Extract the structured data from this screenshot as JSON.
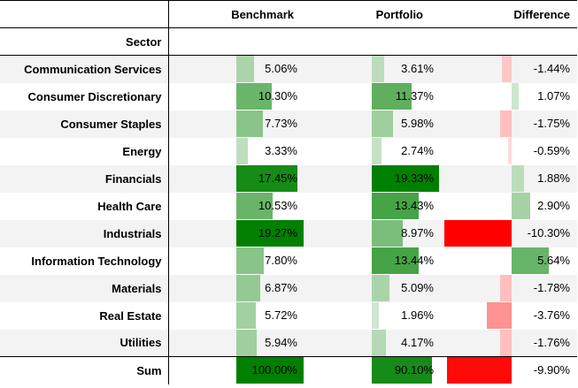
{
  "headers": {
    "benchmark": "Benchmark",
    "portfolio": "Portfolio",
    "difference": "Difference",
    "sector": "Sector"
  },
  "rows": [
    {
      "sector": "Communication Services",
      "benchmark": "5.06%",
      "portfolio": "3.61%",
      "difference": "-1.44%",
      "bv": 5.06,
      "pv": 3.61,
      "dv": -1.44
    },
    {
      "sector": "Consumer Discretionary",
      "benchmark": "10.30%",
      "portfolio": "11.37%",
      "difference": "1.07%",
      "bv": 10.3,
      "pv": 11.37,
      "dv": 1.07
    },
    {
      "sector": "Consumer Staples",
      "benchmark": "7.73%",
      "portfolio": "5.98%",
      "difference": "-1.75%",
      "bv": 7.73,
      "pv": 5.98,
      "dv": -1.75
    },
    {
      "sector": "Energy",
      "benchmark": "3.33%",
      "portfolio": "2.74%",
      "difference": "-0.59%",
      "bv": 3.33,
      "pv": 2.74,
      "dv": -0.59
    },
    {
      "sector": "Financials",
      "benchmark": "17.45%",
      "portfolio": "19.33%",
      "difference": "1.88%",
      "bv": 17.45,
      "pv": 19.33,
      "dv": 1.88
    },
    {
      "sector": "Health Care",
      "benchmark": "10.53%",
      "portfolio": "13.43%",
      "difference": "2.90%",
      "bv": 10.53,
      "pv": 13.43,
      "dv": 2.9
    },
    {
      "sector": "Industrials",
      "benchmark": "19.27%",
      "portfolio": "8.97%",
      "difference": "-10.30%",
      "bv": 19.27,
      "pv": 8.97,
      "dv": -10.3
    },
    {
      "sector": "Information Technology",
      "benchmark": "7.80%",
      "portfolio": "13.44%",
      "difference": "5.64%",
      "bv": 7.8,
      "pv": 13.44,
      "dv": 5.64
    },
    {
      "sector": "Materials",
      "benchmark": "6.87%",
      "portfolio": "5.09%",
      "difference": "-1.78%",
      "bv": 6.87,
      "pv": 5.09,
      "dv": -1.78
    },
    {
      "sector": "Real Estate",
      "benchmark": "5.72%",
      "portfolio": "1.96%",
      "difference": "-3.76%",
      "bv": 5.72,
      "pv": 1.96,
      "dv": -3.76
    },
    {
      "sector": "Utilities",
      "benchmark": "5.94%",
      "portfolio": "4.17%",
      "difference": "-1.76%",
      "bv": 5.94,
      "pv": 4.17,
      "dv": -1.76
    }
  ],
  "sum": {
    "sector": "Sum",
    "benchmark": "100.00%",
    "portfolio": "90.10%",
    "difference": "-9.90%",
    "bv": 100,
    "pv": 90.1,
    "dv": -9.9
  },
  "colors": {
    "green_dark": "#008000",
    "green_light": "#e6f2e6",
    "red_strong": "#ff0000",
    "red_light": "#ffe6e6"
  }
}
